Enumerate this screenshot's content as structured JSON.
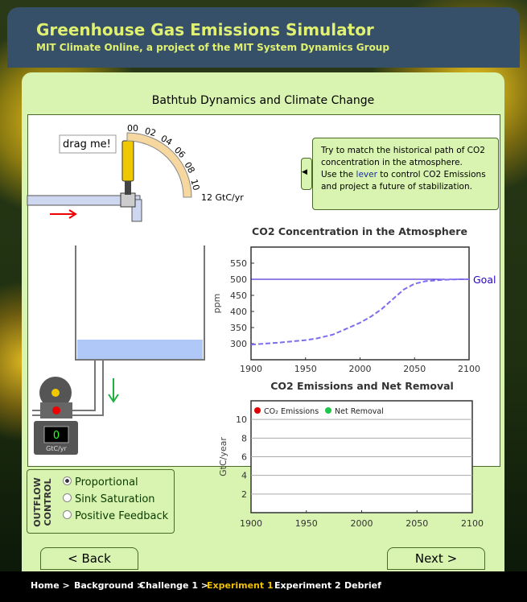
{
  "header": {
    "title": "Greenhouse Gas Emissions Simulator",
    "subtitle": "MIT Climate Online, a project of the MIT System Dynamics Group"
  },
  "panel_title": "Bathtub Dynamics and Climate Change",
  "lever": {
    "label": "drag me!",
    "scale": [
      "00",
      "02",
      "04",
      "06",
      "08",
      "10",
      "12 GtC/yr"
    ]
  },
  "instructions": {
    "line1": "Try to match the historical path of CO2 concentration in the atmosphere.",
    "pre": "Use the",
    "link": "lever",
    "post": "to control CO2 Emissions and project a future of stabilization."
  },
  "gauge": {
    "value": "0",
    "unit": "GtC/yr"
  },
  "outflow": {
    "title1": "OUTFLOW",
    "title2": "CONTROL",
    "options": [
      "Proportional",
      "Sink Saturation",
      "Positive Feedback"
    ],
    "selected": 0
  },
  "buttons": {
    "back": "< Back",
    "next": "Next >"
  },
  "nav": {
    "items": [
      "Home >",
      "Background >",
      "Challenge 1 >",
      "Experiment 1",
      "Experiment 2",
      "Debrief"
    ],
    "active": 3
  },
  "charts": [
    {
      "type": "line",
      "title": "CO2 Concentration in the Atmosphere",
      "y_label": "ppm",
      "xlim": [
        1900,
        2100
      ],
      "xticks": [
        1900,
        1950,
        2000,
        2050,
        2100
      ],
      "ylim": [
        250,
        600
      ],
      "yticks": [
        300,
        350,
        400,
        450,
        500,
        550
      ],
      "grid": false,
      "goal": {
        "value": 500,
        "label": "Goal",
        "color": "#2a00c8"
      },
      "x": [
        1900,
        1925,
        1950,
        1960,
        1975,
        1990,
        2000,
        2010,
        2020,
        2030,
        2040,
        2050,
        2060,
        2075,
        2090,
        2100
      ],
      "series": [
        {
          "name": "CO2 Concentration",
          "color": "#7b6cf0",
          "values": [
            297,
            303,
            311,
            316,
            328,
            350,
            365,
            384,
            408,
            438,
            468,
            486,
            494,
            498,
            500,
            500
          ]
        }
      ]
    },
    {
      "type": "line",
      "title": "CO2 Emissions and Net Removal",
      "y_label": "GtC/year",
      "xlim": [
        1900,
        2100
      ],
      "xticks": [
        1900,
        1950,
        2000,
        2050,
        2100
      ],
      "ylim": [
        0,
        12
      ],
      "yticks": [
        2,
        4,
        6,
        8,
        10
      ],
      "grid": true,
      "x": [],
      "series": [
        {
          "name": "CO₂ Emissions",
          "color": "#e00000",
          "values": []
        },
        {
          "name": "Net Removal",
          "color": "#1fc84a",
          "values": []
        }
      ]
    }
  ]
}
